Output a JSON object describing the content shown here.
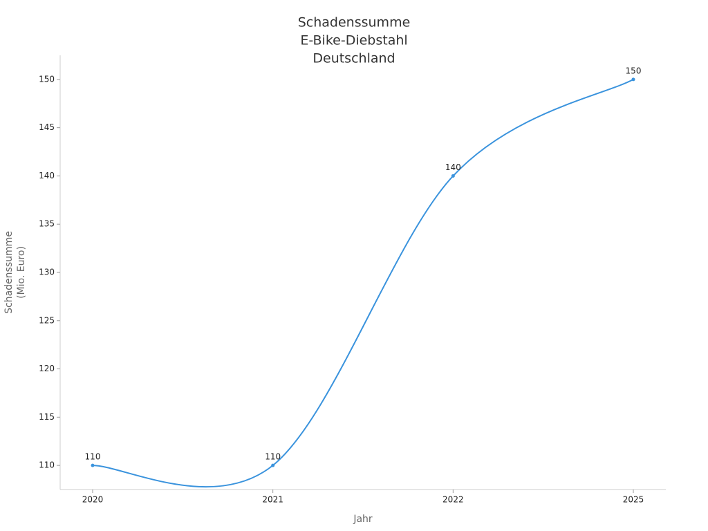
{
  "chart_data": {
    "type": "line",
    "title": [
      "Schadenssumme",
      "E-Bike-Diebstahl",
      "Deutschland"
    ],
    "y_label": [
      "Schadenssumme",
      "(Mio. Euro)"
    ],
    "x_label": "Jahr",
    "categories": [
      "2020",
      "2021",
      "2022",
      "2025"
    ],
    "series": [
      {
        "name": "Schadenssumme",
        "color": "#3a93dd",
        "values": [
          110,
          110,
          140,
          150
        ]
      }
    ],
    "ylim": [
      107.5,
      152.5
    ],
    "yticks": [
      110,
      115,
      120,
      125,
      130,
      135,
      140,
      145,
      150
    ],
    "smooth": true
  }
}
